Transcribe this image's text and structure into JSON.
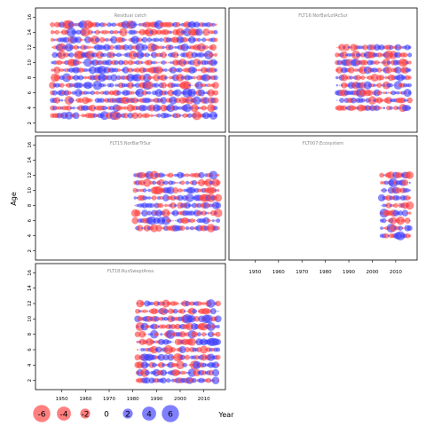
{
  "colors": {
    "negative": "#ff3b3b",
    "positive": "#3a3aff",
    "frame": "#000000",
    "panel_title": "#888888"
  },
  "figure": {
    "ylabel": "Age",
    "xlabel": "Year"
  },
  "legend": {
    "items": [
      {
        "value": -6,
        "label": "-6"
      },
      {
        "value": -4,
        "label": "-4"
      },
      {
        "value": -2,
        "label": "-2"
      },
      {
        "value": 0,
        "label": "0"
      },
      {
        "value": 2,
        "label": "2"
      },
      {
        "value": 4,
        "label": "4"
      },
      {
        "value": 6,
        "label": "6"
      }
    ]
  },
  "chart_data": {
    "type": "scatter",
    "encoding": "bubble; circle area proportional to absolute residual; red = negative, blue = positive",
    "xlim": [
      1940,
      2018
    ],
    "ylim": [
      1.5,
      16.5
    ],
    "x_ticks": [
      1950,
      1960,
      1970,
      1980,
      1990,
      2000,
      2010
    ],
    "y_ticks": [
      2,
      4,
      6,
      8,
      10,
      12,
      14,
      16
    ],
    "panels": [
      {
        "title": "Residual catch",
        "years": [
          1946,
          2015
        ],
        "ages": [
          3,
          15
        ],
        "seed": 11
      },
      {
        "title": "FLT16:NorBarLofAcSur",
        "years": [
          1985,
          2016
        ],
        "ages": [
          4,
          12
        ],
        "seed": 23
      },
      {
        "title": "FLT15:NorBarTrSur",
        "years": [
          1981,
          2016
        ],
        "ages": [
          5,
          12
        ],
        "seed": 37
      },
      {
        "title": "FLT007:Ecosystem",
        "years": [
          2004,
          2016
        ],
        "ages": [
          4,
          12
        ],
        "seed": 51
      },
      {
        "title": "FLT18:RusSweptArea",
        "years": [
          1982,
          2016
        ],
        "ages": [
          2,
          12
        ],
        "seed": 67
      }
    ]
  }
}
